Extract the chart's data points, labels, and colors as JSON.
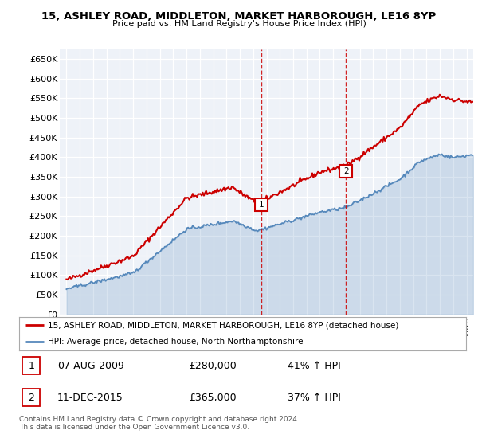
{
  "title": "15, ASHLEY ROAD, MIDDLETON, MARKET HARBOROUGH, LE16 8YP",
  "subtitle": "Price paid vs. HM Land Registry's House Price Index (HPI)",
  "ylabel_ticks": [
    "£0",
    "£50K",
    "£100K",
    "£150K",
    "£200K",
    "£250K",
    "£300K",
    "£350K",
    "£400K",
    "£450K",
    "£500K",
    "£550K",
    "£600K",
    "£650K"
  ],
  "ylim": [
    0,
    675000
  ],
  "xlim_start": 1994.5,
  "xlim_end": 2025.5,
  "red_line_color": "#cc0000",
  "blue_line_color": "#5588bb",
  "marker1_x": 2009.6,
  "marker1_y": 280000,
  "marker1_label": "1",
  "marker2_x": 2015.95,
  "marker2_y": 365000,
  "marker2_label": "2",
  "vline1_x": 2009.6,
  "vline2_x": 2015.95,
  "legend_line1": "15, ASHLEY ROAD, MIDDLETON, MARKET HARBOROUGH, LE16 8YP (detached house)",
  "legend_line2": "HPI: Average price, detached house, North Northamptonshire",
  "table_data": [
    [
      "1",
      "07-AUG-2009",
      "£280,000",
      "41% ↑ HPI"
    ],
    [
      "2",
      "11-DEC-2015",
      "£365,000",
      "37% ↑ HPI"
    ]
  ],
  "footnote": "Contains HM Land Registry data © Crown copyright and database right 2024.\nThis data is licensed under the Open Government Licence v3.0.",
  "background_color": "#ffffff",
  "plot_bg_color": "#eef2f8"
}
